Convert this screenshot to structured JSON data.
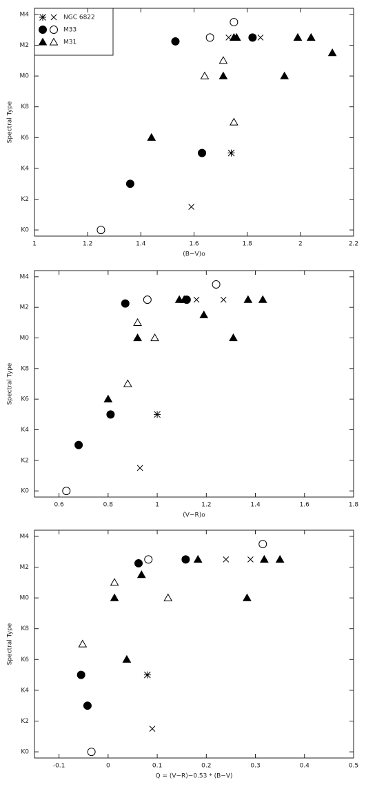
{
  "chart_data": [
    {
      "type": "scatter",
      "xlabel": "(B−V)o",
      "ylabel": "Spectral Type",
      "legend": "upper left",
      "xlim": [
        1,
        2.2
      ],
      "xticks": [
        1,
        1.2,
        1.4,
        1.6,
        1.8,
        2,
        2.2
      ],
      "ylim": [
        -0.4,
        14.4
      ],
      "yticks": [
        {
          "value": 0,
          "label": "K0"
        },
        {
          "value": 2,
          "label": "K2"
        },
        {
          "value": 4,
          "label": "K4"
        },
        {
          "value": 6,
          "label": "K6"
        },
        {
          "value": 8,
          "label": "K8"
        },
        {
          "value": 10,
          "label": "M0"
        },
        {
          "value": 12,
          "label": "M2"
        },
        {
          "value": 14,
          "label": "M4"
        }
      ],
      "series": [
        {
          "name": "NGC 6822",
          "marker": "asterisk",
          "x": [
            1.74
          ],
          "values": [
            5
          ]
        },
        {
          "marker": "cross",
          "x": [
            1.59,
            1.73,
            1.85
          ],
          "values": [
            1.5,
            12.5,
            12.5
          ]
        },
        {
          "name": "M33",
          "marker": "filled-circle",
          "x": [
            1.36,
            1.53,
            1.63,
            1.82
          ],
          "values": [
            3,
            12.25,
            5,
            12.5
          ]
        },
        {
          "marker": "open-circle",
          "x": [
            1.25,
            1.66,
            1.75
          ],
          "values": [
            0,
            12.5,
            13.5
          ]
        },
        {
          "name": "M31",
          "marker": "filled-triangle",
          "x": [
            1.44,
            1.71,
            1.75,
            1.76,
            1.94,
            1.99,
            2.04,
            2.12
          ],
          "values": [
            6,
            10,
            12.5,
            12.5,
            10,
            12.5,
            12.5,
            11.5
          ]
        },
        {
          "marker": "open-triangle",
          "x": [
            1.64,
            1.71,
            1.75
          ],
          "values": [
            10,
            11,
            7
          ]
        }
      ]
    },
    {
      "type": "scatter",
      "xlabel": "(V−R)o",
      "ylabel": "Spectral Type",
      "xlim": [
        0.5,
        1.8
      ],
      "xticks": [
        0.6,
        0.8,
        1,
        1.2,
        1.4,
        1.6,
        1.8
      ],
      "ylim": [
        -0.4,
        14.4
      ],
      "yticks": [
        {
          "value": 0,
          "label": "K0"
        },
        {
          "value": 2,
          "label": "K2"
        },
        {
          "value": 4,
          "label": "K4"
        },
        {
          "value": 6,
          "label": "K6"
        },
        {
          "value": 8,
          "label": "K8"
        },
        {
          "value": 10,
          "label": "M0"
        },
        {
          "value": 12,
          "label": "M2"
        },
        {
          "value": 14,
          "label": "M4"
        }
      ],
      "series": [
        {
          "marker": "asterisk",
          "x": [
            1.0
          ],
          "values": [
            5
          ]
        },
        {
          "marker": "cross",
          "x": [
            0.93,
            1.16,
            1.27
          ],
          "values": [
            1.5,
            12.5,
            12.5
          ]
        },
        {
          "marker": "filled-circle",
          "x": [
            0.68,
            0.81,
            0.87,
            1.12
          ],
          "values": [
            3,
            5,
            12.25,
            12.5
          ]
        },
        {
          "marker": "open-circle",
          "x": [
            0.63,
            0.96,
            1.24
          ],
          "values": [
            0,
            12.5,
            13.5
          ]
        },
        {
          "marker": "filled-triangle",
          "x": [
            0.8,
            0.92,
            1.09,
            1.11,
            1.19,
            1.31,
            1.37,
            1.43
          ],
          "values": [
            6,
            10,
            12.5,
            12.5,
            11.5,
            10,
            12.5,
            12.5
          ]
        },
        {
          "marker": "open-triangle",
          "x": [
            0.88,
            0.92,
            0.99
          ],
          "values": [
            7,
            11,
            10
          ]
        }
      ]
    },
    {
      "type": "scatter",
      "xlabel": "Q = (V−R)−0.53 * (B−V)",
      "ylabel": "Spectral Type",
      "xlim": [
        -0.15,
        0.5
      ],
      "xticks": [
        -0.1,
        0,
        0.1,
        0.2,
        0.3,
        0.4,
        0.5
      ],
      "ylim": [
        -0.4,
        14.4
      ],
      "yticks": [
        {
          "value": 0,
          "label": "K0"
        },
        {
          "value": 2,
          "label": "K2"
        },
        {
          "value": 4,
          "label": "K4"
        },
        {
          "value": 6,
          "label": "K6"
        },
        {
          "value": 8,
          "label": "K8"
        },
        {
          "value": 10,
          "label": "M0"
        },
        {
          "value": 12,
          "label": "M2"
        },
        {
          "value": 14,
          "label": "M4"
        }
      ],
      "series": [
        {
          "marker": "asterisk",
          "x": [
            0.08
          ],
          "values": [
            5
          ]
        },
        {
          "marker": "cross",
          "x": [
            0.09,
            0.24,
            0.29
          ],
          "values": [
            1.5,
            12.5,
            12.5
          ]
        },
        {
          "marker": "filled-circle",
          "x": [
            -0.055,
            -0.042,
            0.062,
            0.158
          ],
          "values": [
            5,
            3,
            12.25,
            12.5
          ]
        },
        {
          "marker": "open-circle",
          "x": [
            -0.034,
            0.082,
            0.315
          ],
          "values": [
            0,
            12.5,
            13.5
          ]
        },
        {
          "marker": "filled-triangle",
          "x": [
            0.013,
            0.038,
            0.068,
            0.183,
            0.283,
            0.318,
            0.35
          ],
          "values": [
            10,
            6,
            11.5,
            12.5,
            10,
            12.5,
            12.5
          ]
        },
        {
          "marker": "open-triangle",
          "x": [
            -0.052,
            0.013,
            0.122
          ],
          "values": [
            7,
            11,
            10
          ]
        }
      ]
    }
  ]
}
